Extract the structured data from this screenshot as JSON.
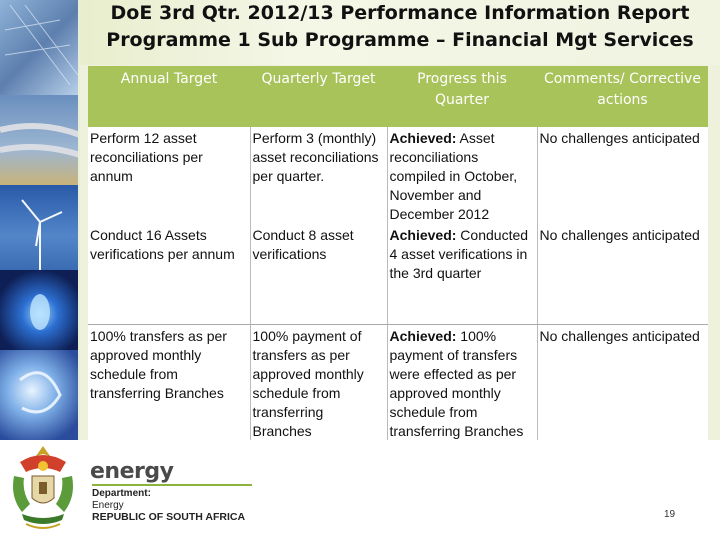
{
  "slide": {
    "title_line1": "DoE 3rd Qtr. 2012/13 Performance Information Report",
    "title_line2": "Programme 1 Sub Programme – Financial Mgt Services",
    "page_number": "19"
  },
  "table": {
    "headers": [
      "Annual Target",
      "Quarterly Target",
      "Progress this Quarter",
      "Comments/ Corrective actions"
    ],
    "rows": [
      {
        "annual": "Perform 12 asset reconciliations per annum",
        "quarterly": "Perform 3 (monthly) asset reconciliations per quarter.",
        "progress_label": "Achieved:",
        "progress_text": " Asset reconciliations compiled in October, November and December 2012",
        "comments": "No challenges anticipated"
      },
      {
        "annual": "Conduct 16 Assets verifications per annum",
        "quarterly": "Conduct 8 asset verifications",
        "progress_label": "Achieved:",
        "progress_text": " Conducted 4 asset verifications in the 3rd quarter",
        "comments": "No challenges anticipated"
      },
      {
        "annual": "100% transfers as per approved monthly schedule from transferring Branches",
        "quarterly": "100% payment of transfers as per approved monthly schedule from transferring Branches",
        "progress_label": "Achieved:",
        "progress_text": " 100% payment of transfers were effected as per approved monthly schedule from transferring Branches",
        "comments": "No challenges anticipated"
      }
    ]
  },
  "footer": {
    "brand": "energy",
    "department": "Department:",
    "department_name": "Energy",
    "country": "REPUBLIC OF SOUTH AFRICA"
  },
  "colors": {
    "header_green": "#a7c35a",
    "background": "#eef2dc"
  },
  "icons": [
    "solar-panel-photo",
    "pipeline-photo",
    "wind-turbine-photo",
    "gas-flame-photo",
    "light-bulb-photo",
    "coat-of-arms-icon"
  ]
}
